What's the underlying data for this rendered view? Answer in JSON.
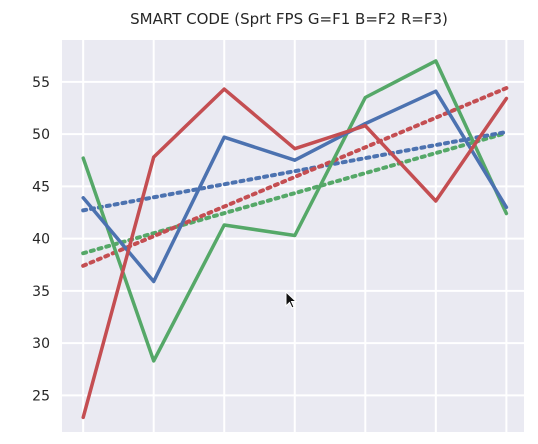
{
  "chart_data": {
    "type": "line",
    "title": "SMART CODE (Sprt FPS G=F1 B=F2 R=F3)",
    "xlabel": "",
    "ylabel": "",
    "x": [
      0,
      1,
      2,
      3,
      4,
      5,
      6
    ],
    "xlim": [
      -0.3,
      6.25
    ],
    "ylim": [
      21.5,
      59.0
    ],
    "yticks": [
      "25",
      "30",
      "35",
      "40",
      "45",
      "50",
      "55"
    ],
    "grid": true,
    "legend": "none",
    "series": [
      {
        "color": "#55a868",
        "values": [
          47.7,
          28.3,
          41.3,
          40.3,
          53.5,
          57.0,
          42.4
        ],
        "trend": [
          38.6,
          50.1
        ]
      },
      {
        "color": "#4c72b0",
        "values": [
          43.9,
          35.9,
          49.7,
          47.5,
          51.0,
          54.1,
          43.0
        ],
        "trend": [
          42.7,
          50.2
        ]
      },
      {
        "color": "#c44e52",
        "values": [
          22.9,
          47.8,
          54.3,
          48.6,
          50.8,
          43.6,
          53.4
        ],
        "trend": [
          37.4,
          54.4
        ]
      }
    ]
  },
  "cursor": {
    "name": "mouse-pointer"
  }
}
